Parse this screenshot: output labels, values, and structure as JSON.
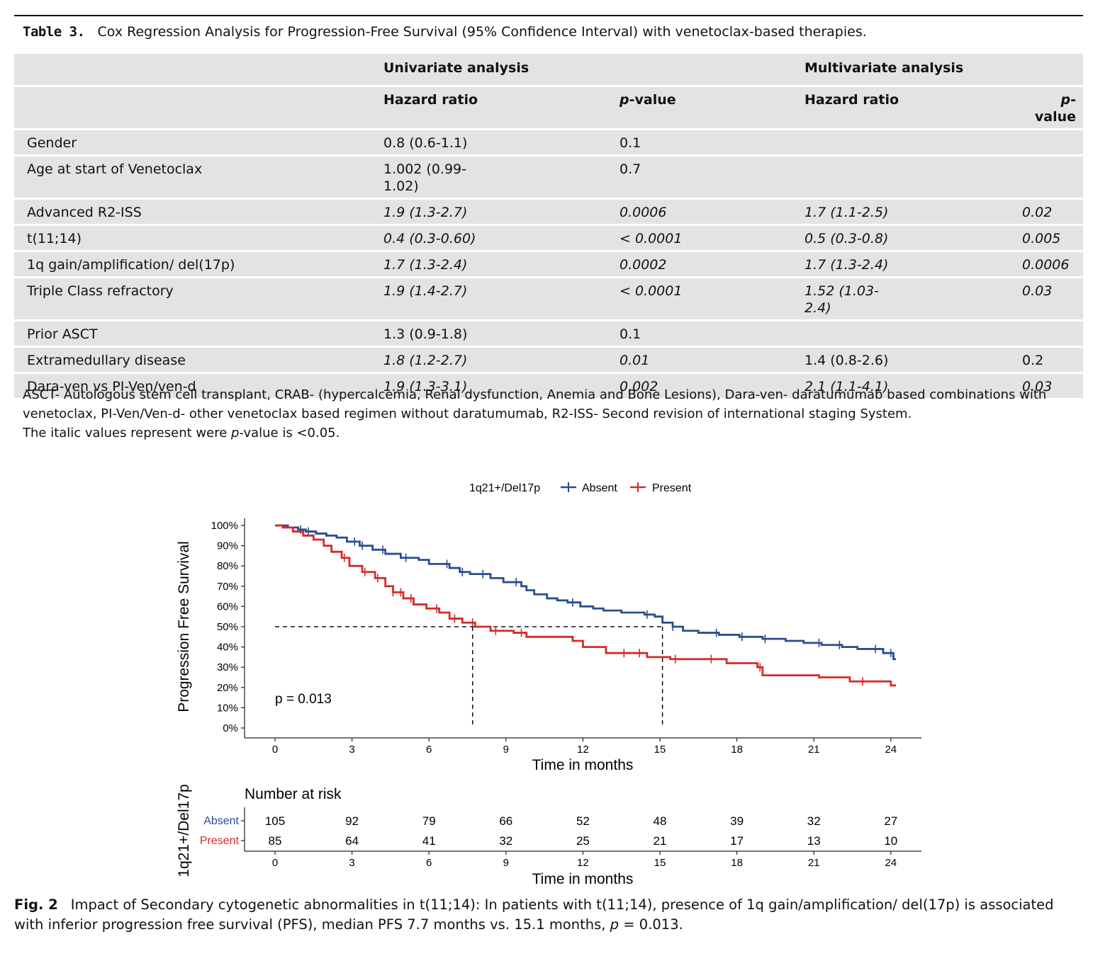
{
  "table": {
    "label": "Table 3.",
    "caption": "Cox Regression Analysis for Progression-Free Survival (95% Confidence Interval) with venetoclax-based therapies.",
    "group_headers": [
      "Univariate analysis",
      "Multivariate analysis"
    ],
    "col_headers": [
      "Hazard ratio",
      "p",
      "-value",
      "Hazard ratio",
      "p",
      "-value"
    ],
    "rows": [
      {
        "label": "Gender",
        "uni_hr": "0.8 (0.6-1.1)",
        "uni_p": "0.1",
        "multi_hr": "",
        "multi_p": ""
      },
      {
        "label": "Age at start of Venetoclax",
        "uni_hr": "1.002 (0.99-",
        "uni_hr2": "1.02)",
        "uni_p": "0.7",
        "multi_hr": "",
        "multi_p": ""
      },
      {
        "label": "Advanced R2-ISS",
        "uni_hr": "1.9 (1.3-2.7)",
        "uni_p": "0.0006",
        "multi_hr": "1.7 (1.1-2.5)",
        "multi_p": "0.02"
      },
      {
        "label": "t(11;14)",
        "uni_hr": "0.4 (0.3-0.60)",
        "uni_p": "< 0.0001",
        "multi_hr": "0.5 (0.3-0.8)",
        "multi_p": "0.005"
      },
      {
        "label": "1q gain/amplification/ del(17p)",
        "uni_hr": "1.7 (1.3-2.4)",
        "uni_p": "0.0002",
        "multi_hr": "1.7 (1.3-2.4)",
        "multi_p": "0.0006"
      },
      {
        "label": "Triple Class refractory",
        "uni_hr": "1.9 (1.4-2.7)",
        "uni_p": "< 0.0001",
        "multi_hr": "1.52 (1.03-",
        "multi_hr2": "2.4)",
        "multi_p": "0.03"
      },
      {
        "label": "Prior ASCT",
        "uni_hr": "1.3 (0.9-1.8)",
        "uni_p": "0.1",
        "multi_hr": "",
        "multi_p": ""
      },
      {
        "label": "Extramedullary disease",
        "uni_hr": "1.8 (1.2-2.7)",
        "uni_p": "0.01",
        "multi_hr": "1.4 (0.8-2.6)",
        "multi_p": "0.2"
      },
      {
        "label": "Dara-ven vs PI-Ven/ven-d",
        "uni_hr": "1.9 (1.3-3.1)",
        "uni_p": "0.002",
        "multi_hr": "2.1 (1.1-4.1)",
        "multi_p": "0.03"
      }
    ],
    "footnote_line1": "ASCT- Autologous stem cell transplant, CRAB- (hypercalcemia, Renal dysfunction, Anemia and Bone Lesions), Dara-ven- daratumumab based combinations with venetoclax, PI-Ven/Ven-d- other venetoclax based regimen without daratumumab, R2-ISS- Second revision of international staging System.",
    "footnote_line2_a": "The italic values represent were ",
    "footnote_line2_p": "p",
    "footnote_line2_b": "-value is <0.05."
  },
  "chart_data": {
    "type": "line",
    "subtype": "kaplan-meier",
    "legend_title": "1q21+/Del17p",
    "legend_position": "top",
    "xlabel": "Time in months",
    "ylabel": "Progression Free Survival",
    "xlim": [
      0,
      24
    ],
    "x_ticks": [
      "0",
      "3",
      "6",
      "9",
      "12",
      "15",
      "18",
      "21",
      "24"
    ],
    "ylim": [
      0,
      1
    ],
    "y_ticks": [
      "0%",
      "10%",
      "20%",
      "30%",
      "40%",
      "50%",
      "60%",
      "70%",
      "80%",
      "90%",
      "100%"
    ],
    "annotation": "p = 0.013",
    "median_reference": {
      "y": 0.5,
      "medians": [
        7.7,
        15.1
      ]
    },
    "series": [
      {
        "name": "Absent",
        "color": "#2a4d8f",
        "x": [
          0,
          0.5,
          0.9,
          1.2,
          1.6,
          2.0,
          2.4,
          2.8,
          3.3,
          3.8,
          4.3,
          4.9,
          5.6,
          6.0,
          6.8,
          7.2,
          7.6,
          8.4,
          8.9,
          9.6,
          9.8,
          10.1,
          10.6,
          11.0,
          11.4,
          11.9,
          12.4,
          12.8,
          13.5,
          14.4,
          14.8,
          15.1,
          15.5,
          15.9,
          16.5,
          17.3,
          18.1,
          19.0,
          19.9,
          20.6,
          21.3,
          22.1,
          22.7,
          23.7,
          24.1
        ],
        "y": [
          1,
          0.99,
          0.98,
          0.97,
          0.96,
          0.95,
          0.94,
          0.92,
          0.9,
          0.88,
          0.86,
          0.84,
          0.83,
          0.81,
          0.79,
          0.77,
          0.76,
          0.74,
          0.72,
          0.7,
          0.68,
          0.66,
          0.64,
          0.63,
          0.62,
          0.6,
          0.59,
          0.58,
          0.57,
          0.56,
          0.55,
          0.52,
          0.5,
          0.48,
          0.47,
          0.46,
          0.45,
          0.44,
          0.43,
          0.42,
          0.41,
          0.4,
          0.39,
          0.37,
          0.34
        ],
        "censor_x": [
          1.0,
          1.3,
          3.1,
          3.4,
          4.2,
          5.1,
          6.7,
          7.3,
          8.1,
          9.4,
          11.6,
          14.5,
          15.5,
          17.2,
          18.2,
          19.1,
          21.2,
          22.0,
          23.4,
          24.0
        ]
      },
      {
        "name": "Present",
        "color": "#d52a2a",
        "x": [
          0,
          0.3,
          0.7,
          1.1,
          1.5,
          1.9,
          2.2,
          2.6,
          2.9,
          3.4,
          3.9,
          4.3,
          4.6,
          5.0,
          5.4,
          5.9,
          6.4,
          6.8,
          7.3,
          7.8,
          8.4,
          9.3,
          9.8,
          11.6,
          12.0,
          12.9,
          14.5,
          15.4,
          17.6,
          18.8,
          19.0,
          21.2,
          22.4,
          24.0
        ],
        "y": [
          1,
          0.99,
          0.97,
          0.95,
          0.93,
          0.9,
          0.87,
          0.84,
          0.8,
          0.77,
          0.74,
          0.7,
          0.67,
          0.64,
          0.61,
          0.59,
          0.57,
          0.54,
          0.52,
          0.5,
          0.48,
          0.47,
          0.45,
          0.43,
          0.4,
          0.37,
          0.35,
          0.34,
          0.32,
          0.3,
          0.26,
          0.25,
          0.23,
          0.21
        ],
        "censor_x": [
          2.7,
          3.5,
          4.0,
          4.6,
          4.9,
          5.3,
          6.3,
          7.0,
          7.7,
          8.6,
          9.6,
          13.6,
          14.2,
          15.6,
          17.0,
          18.9,
          22.9
        ]
      }
    ],
    "risk_table": {
      "title": "Number at risk",
      "strata_label": "1q21+/Del17p",
      "times": [
        "0",
        "3",
        "6",
        "9",
        "12",
        "15",
        "18",
        "21",
        "24"
      ],
      "rows": [
        {
          "name": "Absent",
          "values": [
            "105",
            "92",
            "79",
            "66",
            "52",
            "48",
            "39",
            "32",
            "27"
          ]
        },
        {
          "name": "Present",
          "values": [
            "85",
            "64",
            "41",
            "32",
            "25",
            "21",
            "17",
            "13",
            "10"
          ]
        }
      ]
    }
  },
  "figure": {
    "label": "Fig. 2",
    "caption_a": "Impact of Secondary cytogenetic abnormalities in t(11;14): In patients with t(11;14), presence of 1q gain/amplification/ del(17p) is associated with inferior progression free survival (PFS), median PFS 7.7 months vs. 15.1 months, ",
    "caption_p": "p",
    "caption_b": " = 0.013."
  }
}
